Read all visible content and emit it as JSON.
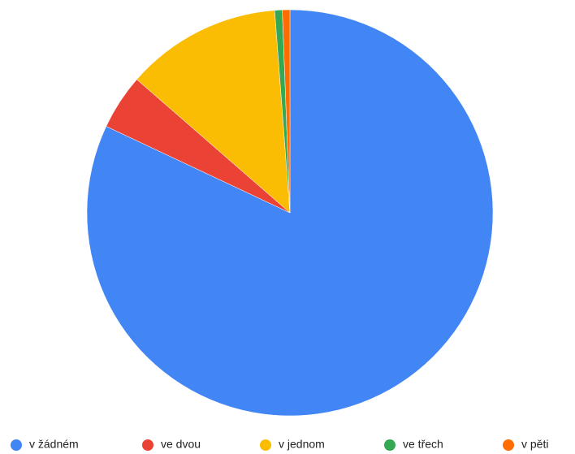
{
  "chart_data": {
    "type": "pie",
    "categories": [
      "v žádném",
      "ve dvou",
      "v jednom",
      "ve třech",
      "v pěti"
    ],
    "values": [
      82.0,
      4.4,
      12.4,
      0.6,
      0.6
    ],
    "colors": [
      "#4285f4",
      "#ea4335",
      "#fbbc04",
      "#34a853",
      "#ff6d01"
    ],
    "legend": "bottom"
  }
}
